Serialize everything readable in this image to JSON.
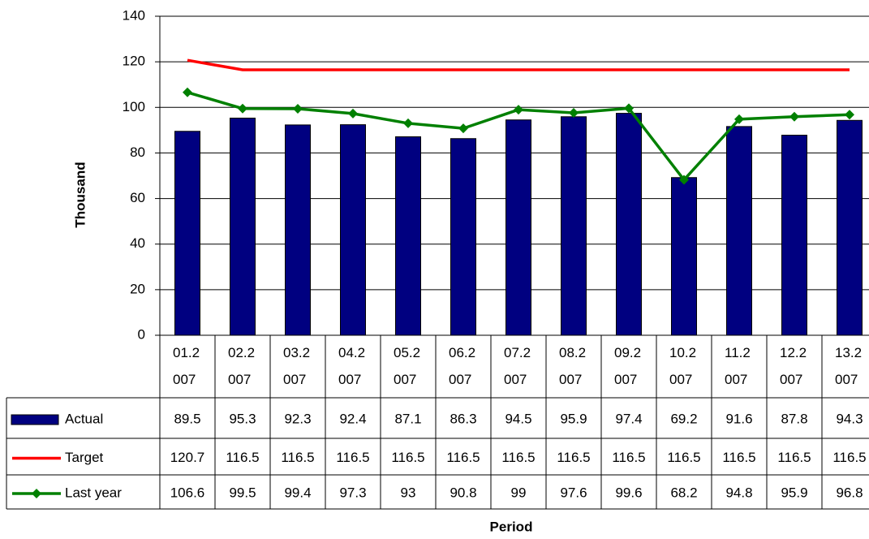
{
  "chart_data": {
    "type": "bar",
    "y_label": "Thousand",
    "x_label": "Period",
    "categories": [
      "01.2007",
      "02.2007",
      "03.2007",
      "04.2007",
      "05.2007",
      "06.2007",
      "07.2007",
      "08.2007",
      "09.2007",
      "10.2007",
      "11.2007",
      "12.2007",
      "13.2007"
    ],
    "series": [
      {
        "name": "Actual",
        "type": "bar",
        "color": "#000080",
        "values": [
          89.5,
          95.3,
          92.3,
          92.4,
          87.1,
          86.3,
          94.5,
          95.9,
          97.4,
          69.2,
          91.6,
          87.8,
          94.3
        ]
      },
      {
        "name": "Target",
        "type": "line",
        "marker": null,
        "color": "#ff0000",
        "values": [
          120.7,
          116.5,
          116.5,
          116.5,
          116.5,
          116.5,
          116.5,
          116.5,
          116.5,
          116.5,
          116.5,
          116.5,
          116.5
        ]
      },
      {
        "name": "Last year",
        "type": "line",
        "marker": "diamond",
        "color": "#008000",
        "values": [
          106.6,
          99.5,
          99.4,
          97.3,
          93,
          90.8,
          99,
          97.6,
          99.6,
          68.2,
          94.8,
          95.9,
          96.8
        ]
      }
    ],
    "ylim": [
      0,
      140
    ],
    "yticks": [
      0,
      20,
      40,
      60,
      80,
      100,
      120,
      140
    ],
    "grid": true,
    "data_table": true
  }
}
